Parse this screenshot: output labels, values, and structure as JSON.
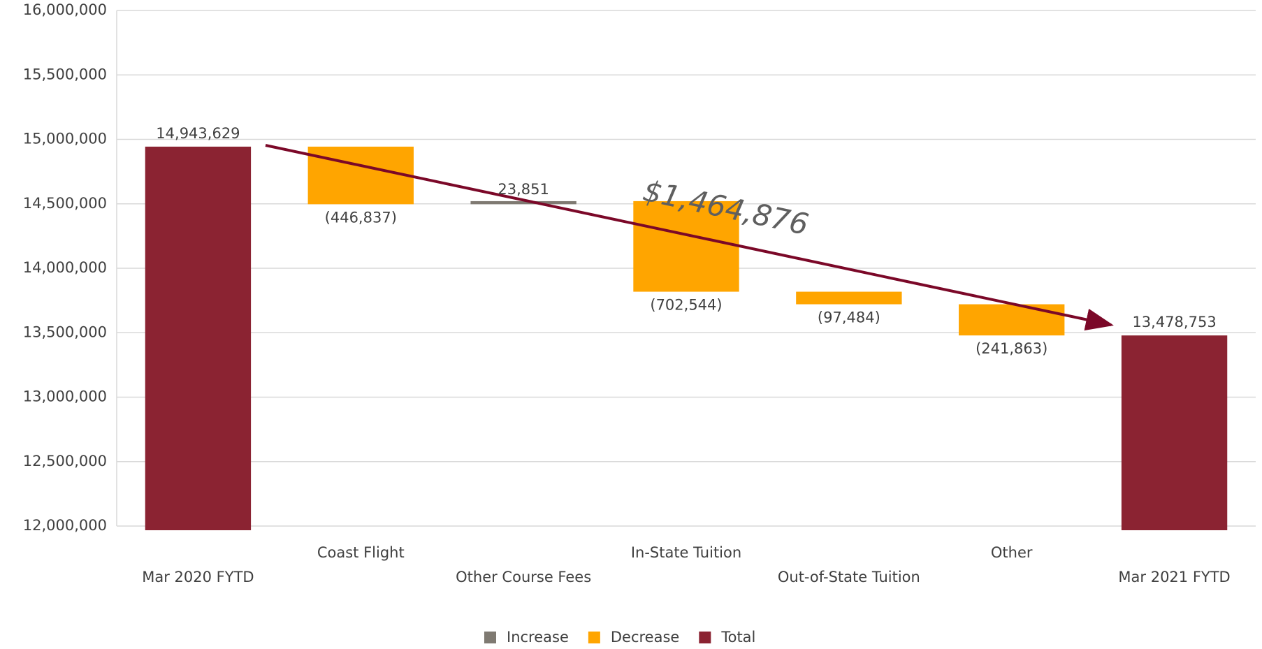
{
  "chart_data": {
    "type": "waterfall",
    "categories": [
      "Mar 2020 FYTD",
      "Coast Flight",
      "Other Course Fees",
      "In-State Tuition",
      "Out-of-State Tuition",
      "Other",
      "Mar 2021 FYTD"
    ],
    "values": [
      14943629,
      -446837,
      23851,
      -702544,
      -97484,
      -241863,
      13478753
    ],
    "value_labels": [
      "14,943,629",
      "(446,837)",
      "23,851",
      "(702,544)",
      "(97,484)",
      "(241,863)",
      "13,478,753"
    ],
    "total_indices": [
      0,
      6
    ],
    "legend": [
      {
        "name": "Increase",
        "color": "#7f7a72"
      },
      {
        "name": "Decrease",
        "color": "#ffa500"
      },
      {
        "name": "Total",
        "color": "#8b2332"
      }
    ],
    "annotation": "$1,464,876",
    "ylim": [
      12000000,
      16000000
    ],
    "yticks": [
      {
        "value": 12000000,
        "label": "12,000,000"
      },
      {
        "value": 12500000,
        "label": "12,500,000"
      },
      {
        "value": 13000000,
        "label": "13,000,000"
      },
      {
        "value": 13500000,
        "label": "13,500,000"
      },
      {
        "value": 14000000,
        "label": "14,000,000"
      },
      {
        "value": 14500000,
        "label": "14,500,000"
      },
      {
        "value": 15000000,
        "label": "15,000,000"
      },
      {
        "value": 15500000,
        "label": "15,500,000"
      },
      {
        "value": 16000000,
        "label": "16,000,000"
      }
    ],
    "grid": true
  }
}
